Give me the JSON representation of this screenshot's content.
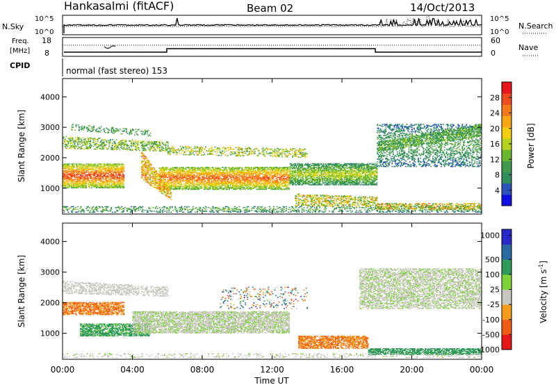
{
  "header": {
    "station": "Hankasalmi (fitACF)",
    "beam": "Beam 02",
    "date": "14/Oct/2013"
  },
  "noise_panel": {
    "left_label": "N.Sky",
    "left_ticks": [
      "10^5",
      "10^0"
    ],
    "right_label": "N.Search",
    "right_ticks": [
      "10^5",
      "10^0"
    ]
  },
  "freq_panel": {
    "left_label_line1": "Freq.",
    "left_label_line2": "[MHz]",
    "left_ticks": [
      "18",
      "8"
    ],
    "right_label": "Nave",
    "right_ticks": [
      "60",
      "0"
    ]
  },
  "cpid": {
    "label": "CPID",
    "text": "normal (fast stereo) 153"
  },
  "axes": {
    "ylabel": "Slant Range [km]",
    "xlabel": "Time UT",
    "x_ticks": [
      "00:00",
      "04:00",
      "08:00",
      "12:00",
      "16:00",
      "20:00",
      "00:00"
    ],
    "y_ticks": [
      "1000",
      "2000",
      "3000",
      "4000"
    ]
  },
  "colors": {
    "power": [
      "#1010e0",
      "#2b55b8",
      "#2e8e60",
      "#3f9a4f",
      "#6ab82f",
      "#b6d21e",
      "#f4cd10",
      "#f6a615",
      "#f47a1c",
      "#ee4c1f",
      "#e8151b"
    ],
    "velocity": [
      "#e81818",
      "#f05a14",
      "#f59a1a",
      "#c8c7bf",
      "#7fd33a",
      "#2f9a59",
      "#2a6aa3",
      "#2828c8"
    ]
  },
  "chart_data": [
    {
      "type": "heatmap",
      "title": "Power",
      "xlabel": "Time UT",
      "ylabel": "Slant Range [km]",
      "xlim": [
        "00:00",
        "24:00"
      ],
      "ylim": [
        150,
        4600
      ],
      "colorbar": {
        "label": "Power [dB]",
        "range": [
          0,
          32
        ],
        "ticks": [
          "4",
          "8",
          "12",
          "16",
          "20",
          "24",
          "28"
        ]
      },
      "dominant_features": [
        {
          "time_start": "00:00",
          "time_end": "03:30",
          "range_km": [
            1000,
            1800
          ],
          "power_db": 28
        },
        {
          "time_start": "05:30",
          "time_end": "13:00",
          "range_km": [
            950,
            1700
          ],
          "power_db": 26
        },
        {
          "time_start": "13:00",
          "time_end": "18:00",
          "range_km": [
            1100,
            1800
          ],
          "power_db": 16
        },
        {
          "time_start": "18:00",
          "time_end": "24:00",
          "range_km": [
            1700,
            3100
          ],
          "power_db": 10
        },
        {
          "time_start": "00:00",
          "time_end": "24:00",
          "range_km": [
            200,
            400
          ],
          "power_db": 12
        }
      ]
    },
    {
      "type": "heatmap",
      "title": "Velocity",
      "xlabel": "Time UT",
      "ylabel": "Slant Range [km]",
      "xlim": [
        "00:00",
        "24:00"
      ],
      "ylim": [
        150,
        4600
      ],
      "colorbar": {
        "label": "Velocity [m s-1]",
        "ticks": [
          "1000",
          "500",
          "100",
          "25",
          "-25",
          "-100",
          "-500",
          "-1000"
        ]
      },
      "dominant_features": [
        {
          "time_start": "00:00",
          "time_end": "03:30",
          "range_km": [
            1600,
            2000
          ],
          "velocity_ms": -300
        },
        {
          "time_start": "01:00",
          "time_end": "05:00",
          "range_km": [
            900,
            1300
          ],
          "velocity_ms": 100
        },
        {
          "time_start": "04:00",
          "time_end": "13:00",
          "range_km": [
            1000,
            1700
          ],
          "velocity_ms": 0
        },
        {
          "time_start": "13:30",
          "time_end": "17:30",
          "range_km": [
            500,
            900
          ],
          "velocity_ms": -300
        },
        {
          "time_start": "17:30",
          "time_end": "24:00",
          "range_km": [
            300,
            500
          ],
          "velocity_ms": 150
        },
        {
          "time_start": "17:00",
          "time_end": "24:00",
          "range_km": [
            1800,
            3100
          ],
          "velocity_ms": 0
        }
      ]
    }
  ]
}
